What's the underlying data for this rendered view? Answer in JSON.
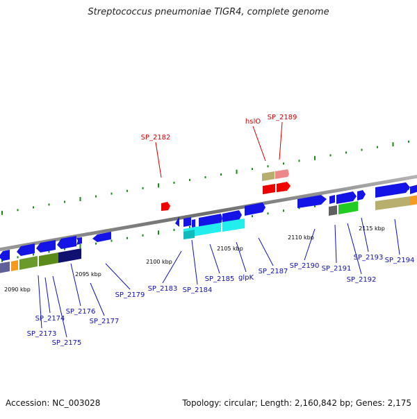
{
  "title": "Streptococcus pneumoniae TIGR4, complete genome",
  "footer": {
    "accession": "Accession: NC_003028",
    "topology": "Topology: circular; Length: 2,160,842 bp; Genes: 2,175"
  },
  "colors": {
    "forward": "#1414e6",
    "reverse": "#1414e6",
    "rna": "#ee0000",
    "backbone": "#808080",
    "tick": "#1a8a1a",
    "label_blue": "#1010b0",
    "label_red": "#cc0000"
  },
  "scale_labels": [
    "2090 kbp",
    "2095 kbp",
    "2100 kbp",
    "2105 kbp",
    "2110 kbp",
    "2115 kbp"
  ],
  "gene_labels": {
    "blue": [
      "SP_2173",
      "SP_2174",
      "SP_2175",
      "SP_2176",
      "SP_2177",
      "SP_2179",
      "SP_2183",
      "SP_2184",
      "SP_2185",
      "glpK",
      "SP_2187",
      "SP_2190",
      "SP_2191",
      "SP_2192",
      "SP_2193",
      "SP_2194"
    ],
    "red": [
      "SP_2182",
      "hslO",
      "SP_2189"
    ]
  }
}
